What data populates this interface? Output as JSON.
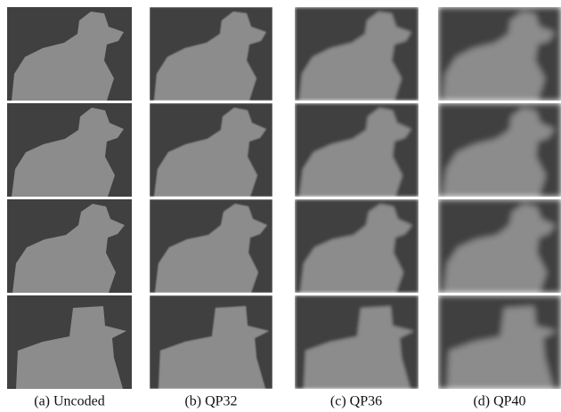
{
  "captions": [
    "(a) Uncoded",
    "(b) QP32",
    "(c) QP36",
    "(d) QP40"
  ]
}
